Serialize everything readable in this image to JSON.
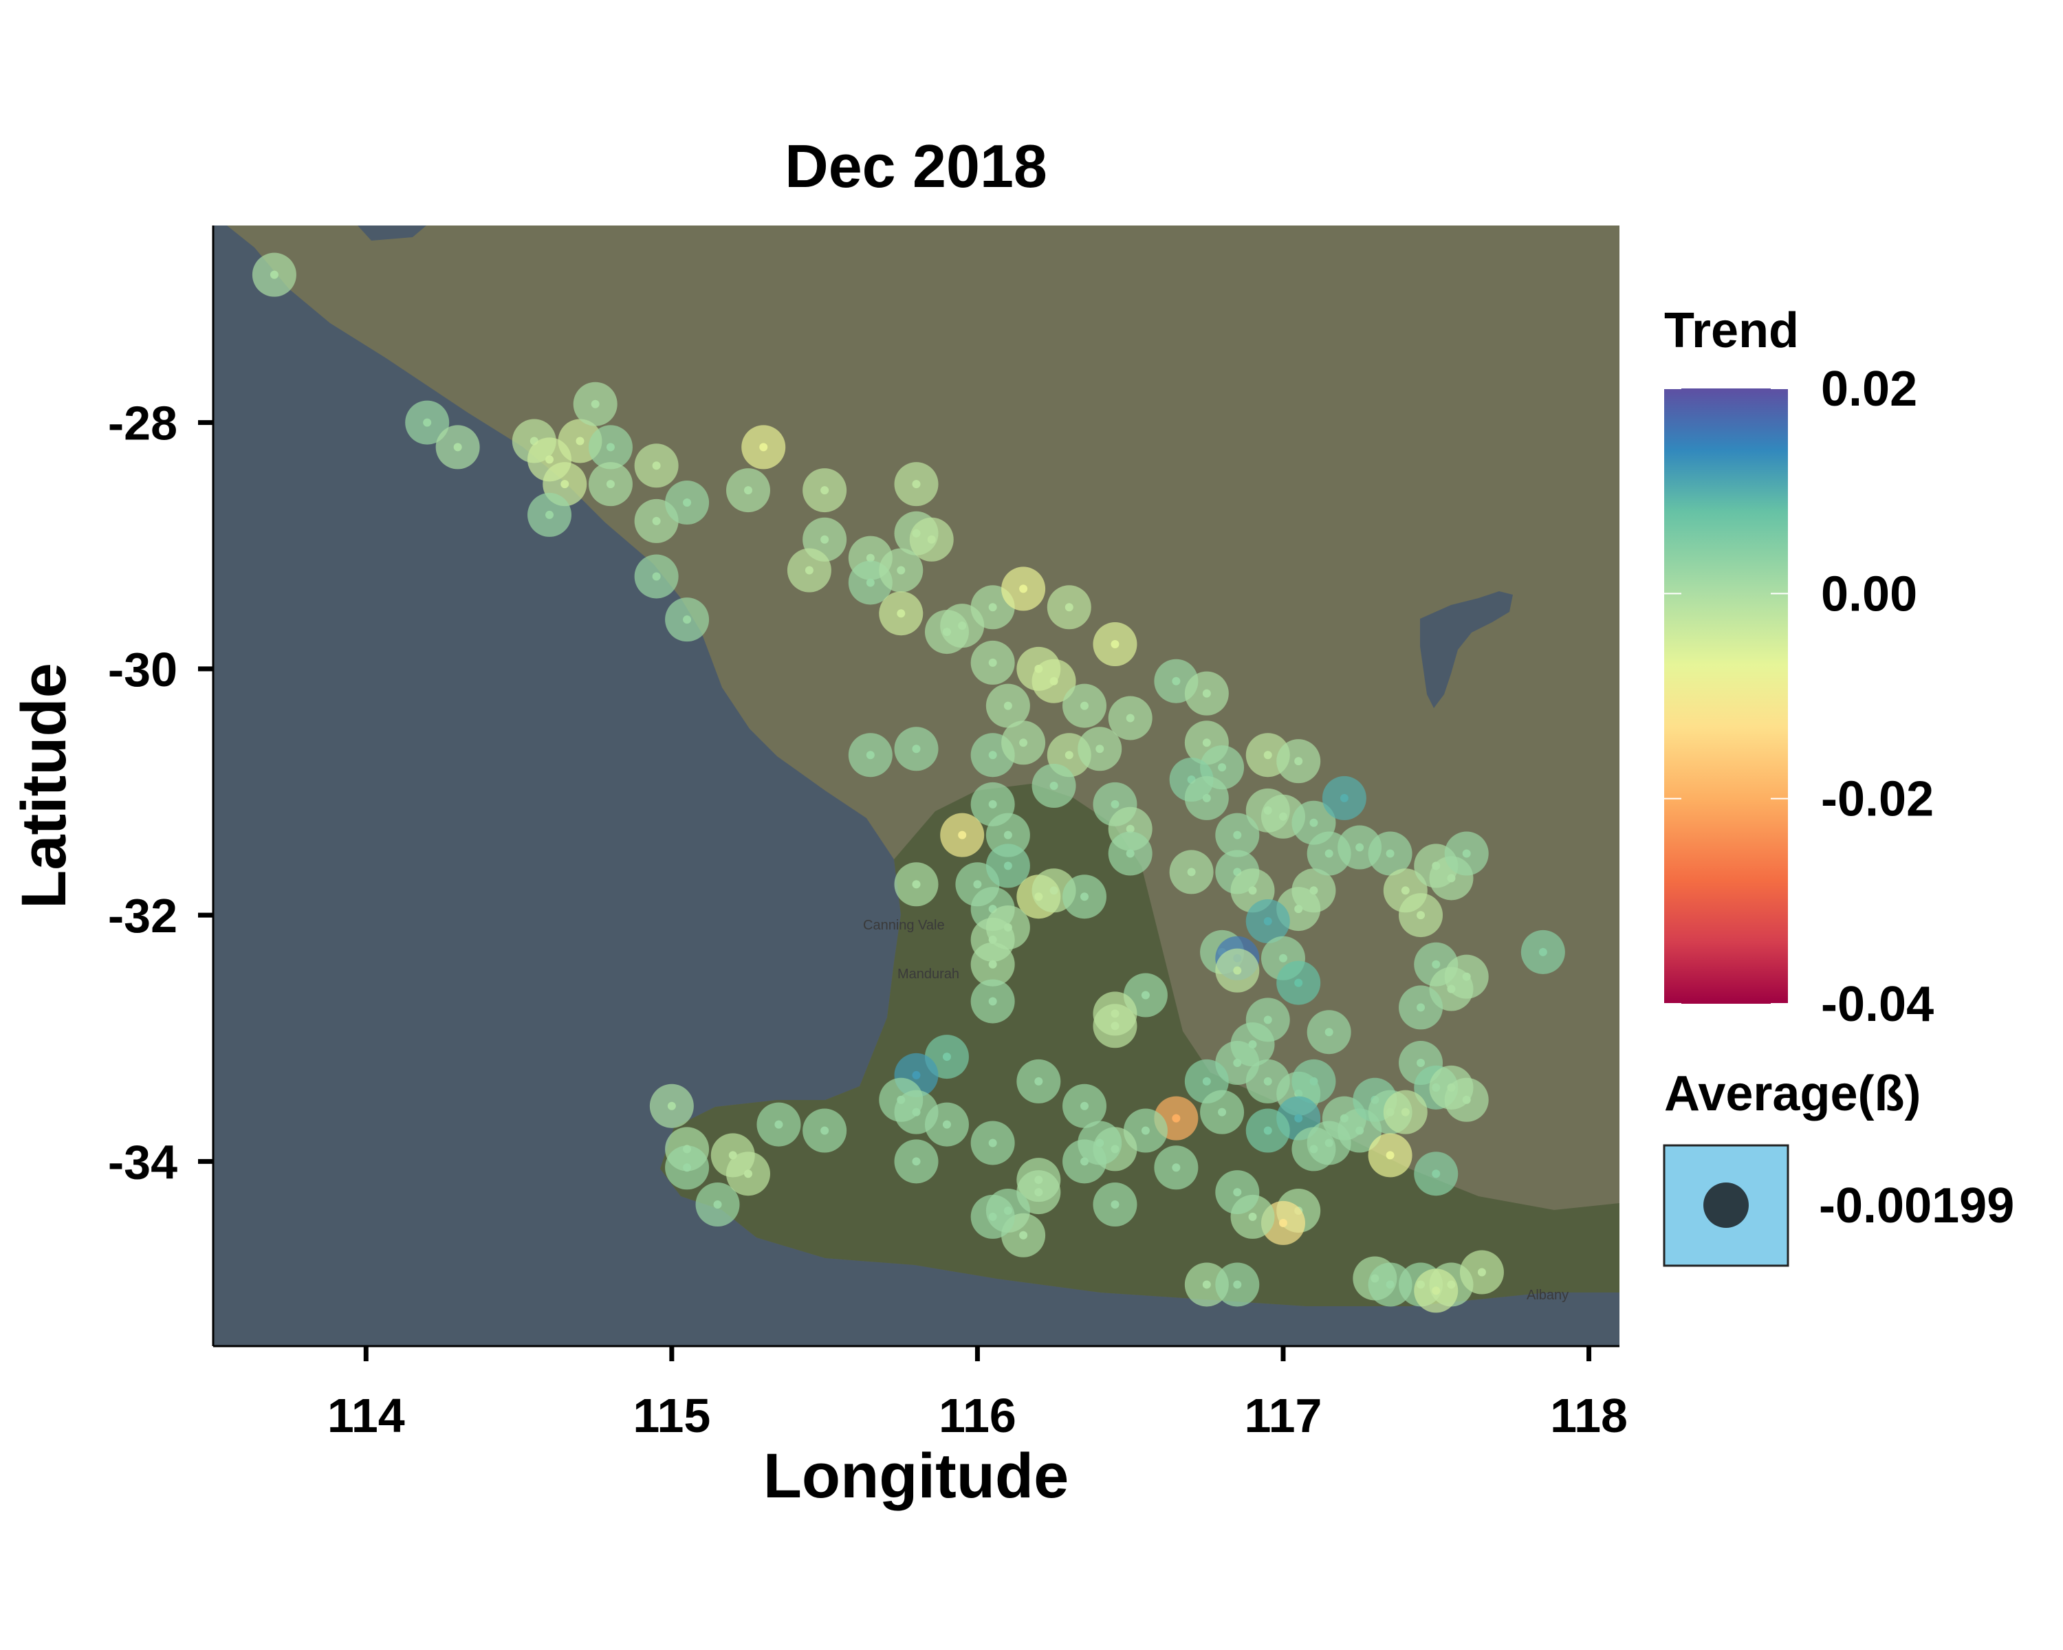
{
  "chart_data": {
    "type": "scatter",
    "title": "Dec 2018",
    "xlabel": "Longitude",
    "ylabel": "Latitude",
    "xlim": [
      113.5,
      118.1
    ],
    "ylim": [
      -35.5,
      -26.4
    ],
    "xticks": [
      114,
      115,
      116,
      117,
      118
    ],
    "yticks": [
      -28,
      -30,
      -32,
      -34
    ],
    "xtick_labels": [
      "114",
      "115",
      "116",
      "117",
      "118"
    ],
    "ytick_labels": [
      "-28",
      "-30",
      "-32",
      "-34"
    ],
    "grid": false,
    "basemap": "terrain map",
    "map_labels": [
      "Canning Vale",
      "Mandurah",
      "Albany"
    ],
    "legend": {
      "placement": "right",
      "color_title": "Trend",
      "color_scale": "spectral",
      "color_ticks": [
        "0.02",
        "0.00",
        "-0.02",
        "-0.04"
      ],
      "color_range": [
        -0.04,
        0.02
      ],
      "size_title": "Average(ß)",
      "size_label": "-0.00199",
      "size_key_fill": "#87CEEB",
      "size_key_point": "#2b3a42"
    },
    "colors": {
      "ocean": "#4b5a69",
      "land": "#707057",
      "vegetation": "#4d5a3a"
    },
    "points": [
      {
        "x": 113.7,
        "y": -26.8,
        "t": 0.0
      },
      {
        "x": 114.2,
        "y": -28.0,
        "t": 0.002
      },
      {
        "x": 114.3,
        "y": -28.2,
        "t": 0.0
      },
      {
        "x": 114.55,
        "y": -28.15,
        "t": -0.002
      },
      {
        "x": 114.6,
        "y": -28.3,
        "t": -0.004
      },
      {
        "x": 114.65,
        "y": -28.5,
        "t": -0.004
      },
      {
        "x": 114.7,
        "y": -28.15,
        "t": -0.004
      },
      {
        "x": 114.75,
        "y": -27.85,
        "t": 0.0
      },
      {
        "x": 114.8,
        "y": -28.2,
        "t": 0.002
      },
      {
        "x": 114.8,
        "y": -28.5,
        "t": 0.0
      },
      {
        "x": 114.6,
        "y": -28.75,
        "t": 0.002
      },
      {
        "x": 114.95,
        "y": -28.35,
        "t": -0.002
      },
      {
        "x": 114.95,
        "y": -28.8,
        "t": 0.0
      },
      {
        "x": 115.05,
        "y": -28.65,
        "t": 0.002
      },
      {
        "x": 114.95,
        "y": -29.25,
        "t": 0.002
      },
      {
        "x": 115.05,
        "y": -29.6,
        "t": 0.002
      },
      {
        "x": 115.25,
        "y": -28.55,
        "t": 0.0
      },
      {
        "x": 115.3,
        "y": -28.2,
        "t": -0.008
      },
      {
        "x": 115.5,
        "y": -28.55,
        "t": -0.002
      },
      {
        "x": 115.5,
        "y": -28.95,
        "t": 0.0
      },
      {
        "x": 115.45,
        "y": -29.2,
        "t": -0.002
      },
      {
        "x": 115.65,
        "y": -29.1,
        "t": 0.0
      },
      {
        "x": 115.65,
        "y": -29.3,
        "t": 0.002
      },
      {
        "x": 115.75,
        "y": -29.2,
        "t": 0.0
      },
      {
        "x": 115.8,
        "y": -28.5,
        "t": -0.002
      },
      {
        "x": 115.8,
        "y": -28.9,
        "t": 0.0
      },
      {
        "x": 115.85,
        "y": -28.95,
        "t": -0.002
      },
      {
        "x": 115.75,
        "y": -29.55,
        "t": -0.004
      },
      {
        "x": 115.9,
        "y": -29.7,
        "t": 0.0
      },
      {
        "x": 115.95,
        "y": -29.65,
        "t": 0.0
      },
      {
        "x": 116.05,
        "y": -29.5,
        "t": 0.0
      },
      {
        "x": 116.15,
        "y": -29.35,
        "t": -0.008
      },
      {
        "x": 116.3,
        "y": -29.5,
        "t": -0.002
      },
      {
        "x": 116.05,
        "y": -29.95,
        "t": 0.0
      },
      {
        "x": 116.1,
        "y": -30.3,
        "t": 0.0
      },
      {
        "x": 116.2,
        "y": -30.0,
        "t": -0.004
      },
      {
        "x": 116.25,
        "y": -30.1,
        "t": -0.004
      },
      {
        "x": 116.35,
        "y": -30.3,
        "t": 0.0
      },
      {
        "x": 116.45,
        "y": -29.8,
        "t": -0.006
      },
      {
        "x": 116.5,
        "y": -30.4,
        "t": 0.0
      },
      {
        "x": 116.65,
        "y": -30.1,
        "t": 0.002
      },
      {
        "x": 116.75,
        "y": -30.2,
        "t": 0.0
      },
      {
        "x": 115.65,
        "y": -30.7,
        "t": 0.002
      },
      {
        "x": 115.8,
        "y": -30.65,
        "t": 0.002
      },
      {
        "x": 116.05,
        "y": -30.7,
        "t": 0.002
      },
      {
        "x": 116.15,
        "y": -30.6,
        "t": 0.0
      },
      {
        "x": 116.3,
        "y": -30.7,
        "t": -0.002
      },
      {
        "x": 116.4,
        "y": -30.65,
        "t": 0.0
      },
      {
        "x": 116.25,
        "y": -30.95,
        "t": 0.002
      },
      {
        "x": 116.45,
        "y": -31.1,
        "t": 0.002
      },
      {
        "x": 116.5,
        "y": -31.3,
        "t": 0.0
      },
      {
        "x": 116.05,
        "y": -31.1,
        "t": 0.002
      },
      {
        "x": 116.1,
        "y": -31.35,
        "t": 0.002
      },
      {
        "x": 115.95,
        "y": -31.35,
        "t": -0.01
      },
      {
        "x": 115.8,
        "y": -31.75,
        "t": 0.0
      },
      {
        "x": 116.0,
        "y": -31.75,
        "t": 0.002
      },
      {
        "x": 116.05,
        "y": -31.95,
        "t": 0.002
      },
      {
        "x": 116.1,
        "y": -31.6,
        "t": 0.004
      },
      {
        "x": 116.2,
        "y": -31.85,
        "t": -0.006
      },
      {
        "x": 116.25,
        "y": -31.8,
        "t": -0.002
      },
      {
        "x": 116.35,
        "y": -31.85,
        "t": 0.002
      },
      {
        "x": 116.05,
        "y": -32.2,
        "t": 0.0
      },
      {
        "x": 116.1,
        "y": -32.1,
        "t": 0.0
      },
      {
        "x": 116.05,
        "y": -32.4,
        "t": 0.0
      },
      {
        "x": 116.05,
        "y": -32.7,
        "t": 0.002
      },
      {
        "x": 116.5,
        "y": -31.5,
        "t": 0.002
      },
      {
        "x": 116.75,
        "y": -30.6,
        "t": 0.0
      },
      {
        "x": 116.8,
        "y": -30.8,
        "t": 0.002
      },
      {
        "x": 116.7,
        "y": -30.9,
        "t": 0.004
      },
      {
        "x": 116.75,
        "y": -31.05,
        "t": 0.002
      },
      {
        "x": 116.95,
        "y": -30.7,
        "t": -0.002
      },
      {
        "x": 117.05,
        "y": -30.75,
        "t": 0.0
      },
      {
        "x": 116.95,
        "y": -31.15,
        "t": 0.0
      },
      {
        "x": 117.0,
        "y": -31.2,
        "t": 0.0
      },
      {
        "x": 117.1,
        "y": -31.25,
        "t": 0.002
      },
      {
        "x": 117.2,
        "y": -31.05,
        "t": 0.01
      },
      {
        "x": 116.85,
        "y": -31.35,
        "t": 0.002
      },
      {
        "x": 116.7,
        "y": -31.65,
        "t": 0.0
      },
      {
        "x": 116.85,
        "y": -31.65,
        "t": 0.002
      },
      {
        "x": 116.9,
        "y": -31.8,
        "t": 0.0
      },
      {
        "x": 117.05,
        "y": -31.95,
        "t": 0.0
      },
      {
        "x": 117.1,
        "y": -31.8,
        "t": 0.0
      },
      {
        "x": 117.15,
        "y": -31.5,
        "t": 0.002
      },
      {
        "x": 117.25,
        "y": -31.45,
        "t": 0.002
      },
      {
        "x": 117.35,
        "y": -31.5,
        "t": 0.002
      },
      {
        "x": 117.4,
        "y": -31.8,
        "t": -0.002
      },
      {
        "x": 117.45,
        "y": -32.0,
        "t": -0.002
      },
      {
        "x": 117.5,
        "y": -31.6,
        "t": 0.0
      },
      {
        "x": 117.55,
        "y": -31.7,
        "t": 0.0
      },
      {
        "x": 117.6,
        "y": -31.5,
        "t": 0.002
      },
      {
        "x": 116.95,
        "y": -32.05,
        "t": 0.01
      },
      {
        "x": 116.8,
        "y": -32.3,
        "t": 0.002
      },
      {
        "x": 116.85,
        "y": -32.35,
        "t": 0.016
      },
      {
        "x": 116.85,
        "y": -32.45,
        "t": -0.002
      },
      {
        "x": 117.0,
        "y": -32.35,
        "t": 0.002
      },
      {
        "x": 117.05,
        "y": -32.55,
        "t": 0.008
      },
      {
        "x": 116.95,
        "y": -32.85,
        "t": 0.002
      },
      {
        "x": 117.15,
        "y": -32.95,
        "t": 0.002
      },
      {
        "x": 116.55,
        "y": -32.65,
        "t": 0.002
      },
      {
        "x": 116.45,
        "y": -32.8,
        "t": -0.002
      },
      {
        "x": 116.45,
        "y": -32.9,
        "t": -0.002
      },
      {
        "x": 116.9,
        "y": -33.05,
        "t": 0.002
      },
      {
        "x": 116.85,
        "y": -33.2,
        "t": 0.002
      },
      {
        "x": 116.75,
        "y": -33.35,
        "t": 0.004
      },
      {
        "x": 116.8,
        "y": -33.6,
        "t": 0.002
      },
      {
        "x": 116.95,
        "y": -33.35,
        "t": 0.002
      },
      {
        "x": 117.05,
        "y": -33.45,
        "t": 0.002
      },
      {
        "x": 117.1,
        "y": -33.35,
        "t": 0.004
      },
      {
        "x": 117.05,
        "y": -33.65,
        "t": 0.01
      },
      {
        "x": 116.95,
        "y": -33.75,
        "t": 0.006
      },
      {
        "x": 117.2,
        "y": -33.65,
        "t": 0.002
      },
      {
        "x": 117.25,
        "y": -33.75,
        "t": 0.002
      },
      {
        "x": 117.3,
        "y": -33.5,
        "t": 0.004
      },
      {
        "x": 117.35,
        "y": -33.6,
        "t": 0.002
      },
      {
        "x": 117.45,
        "y": -33.2,
        "t": 0.002
      },
      {
        "x": 117.5,
        "y": -33.4,
        "t": 0.004
      },
      {
        "x": 117.4,
        "y": -33.6,
        "t": -0.002
      },
      {
        "x": 117.55,
        "y": -33.4,
        "t": 0.0
      },
      {
        "x": 117.6,
        "y": -33.5,
        "t": 0.0
      },
      {
        "x": 117.5,
        "y": -32.4,
        "t": 0.002
      },
      {
        "x": 117.6,
        "y": -32.5,
        "t": 0.0
      },
      {
        "x": 117.55,
        "y": -32.6,
        "t": 0.0
      },
      {
        "x": 117.45,
        "y": -32.75,
        "t": 0.002
      },
      {
        "x": 117.85,
        "y": -32.3,
        "t": 0.004
      },
      {
        "x": 117.35,
        "y": -33.95,
        "t": -0.008
      },
      {
        "x": 117.1,
        "y": -33.9,
        "t": 0.002
      },
      {
        "x": 117.15,
        "y": -33.85,
        "t": 0.002
      },
      {
        "x": 117.5,
        "y": -34.1,
        "t": 0.004
      },
      {
        "x": 117.05,
        "y": -34.4,
        "t": 0.0
      },
      {
        "x": 117.0,
        "y": -34.5,
        "t": -0.012
      },
      {
        "x": 116.9,
        "y": -34.45,
        "t": 0.0
      },
      {
        "x": 116.85,
        "y": -34.25,
        "t": 0.002
      },
      {
        "x": 116.65,
        "y": -33.65,
        "t": -0.02
      },
      {
        "x": 116.55,
        "y": -33.75,
        "t": 0.002
      },
      {
        "x": 116.45,
        "y": -33.9,
        "t": 0.0
      },
      {
        "x": 116.35,
        "y": -33.55,
        "t": 0.002
      },
      {
        "x": 116.4,
        "y": -33.85,
        "t": 0.002
      },
      {
        "x": 116.35,
        "y": -34.0,
        "t": 0.002
      },
      {
        "x": 116.45,
        "y": -34.35,
        "t": 0.002
      },
      {
        "x": 116.65,
        "y": -34.05,
        "t": 0.002
      },
      {
        "x": 116.2,
        "y": -33.35,
        "t": 0.002
      },
      {
        "x": 116.2,
        "y": -34.15,
        "t": 0.0
      },
      {
        "x": 116.2,
        "y": -34.25,
        "t": 0.0
      },
      {
        "x": 116.1,
        "y": -34.4,
        "t": 0.002
      },
      {
        "x": 116.15,
        "y": -34.6,
        "t": 0.0
      },
      {
        "x": 116.05,
        "y": -34.45,
        "t": 0.002
      },
      {
        "x": 116.05,
        "y": -33.85,
        "t": 0.002
      },
      {
        "x": 115.9,
        "y": -33.15,
        "t": 0.006
      },
      {
        "x": 115.8,
        "y": -33.3,
        "t": 0.012
      },
      {
        "x": 115.75,
        "y": -33.5,
        "t": 0.002
      },
      {
        "x": 115.8,
        "y": -33.6,
        "t": 0.002
      },
      {
        "x": 115.9,
        "y": -33.7,
        "t": 0.002
      },
      {
        "x": 115.8,
        "y": -34.0,
        "t": 0.002
      },
      {
        "x": 115.0,
        "y": -33.55,
        "t": 0.0
      },
      {
        "x": 115.05,
        "y": -33.9,
        "t": 0.0
      },
      {
        "x": 115.05,
        "y": -34.05,
        "t": 0.002
      },
      {
        "x": 115.15,
        "y": -34.35,
        "t": 0.002
      },
      {
        "x": 115.2,
        "y": -33.95,
        "t": -0.002
      },
      {
        "x": 115.25,
        "y": -34.1,
        "t": -0.002
      },
      {
        "x": 115.35,
        "y": -33.7,
        "t": 0.002
      },
      {
        "x": 115.5,
        "y": -33.75,
        "t": 0.002
      },
      {
        "x": 116.75,
        "y": -35.0,
        "t": 0.0
      },
      {
        "x": 116.85,
        "y": -35.0,
        "t": 0.002
      },
      {
        "x": 117.3,
        "y": -34.95,
        "t": 0.0
      },
      {
        "x": 117.35,
        "y": -35.0,
        "t": 0.002
      },
      {
        "x": 117.45,
        "y": -35.0,
        "t": 0.002
      },
      {
        "x": 117.55,
        "y": -35.0,
        "t": 0.0
      },
      {
        "x": 117.65,
        "y": -34.9,
        "t": -0.002
      },
      {
        "x": 117.5,
        "y": -35.05,
        "t": -0.004
      }
    ]
  }
}
